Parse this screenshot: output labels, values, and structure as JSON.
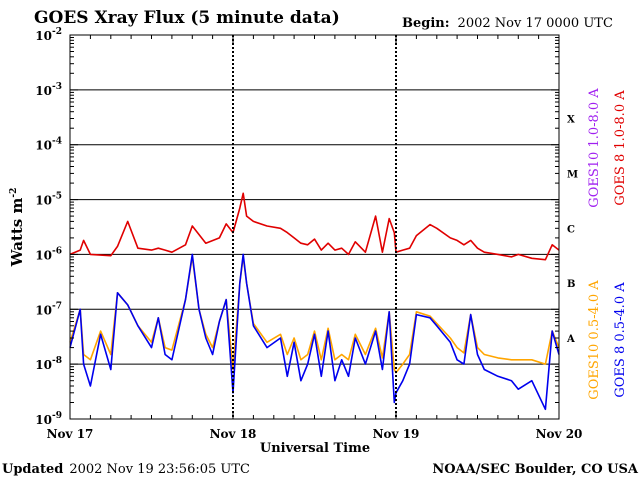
{
  "chart_data": {
    "type": "line",
    "title": "GOES Xray Flux (5 minute data)",
    "begin_label": "Begin:",
    "begin_value": "2002 Nov 17 0000 UTC",
    "xlabel": "Universal Time",
    "ylabel": "Watts m",
    "ylabel_exponent": "-2",
    "y_scale": "log",
    "ylim": [
      1e-09,
      0.01
    ],
    "y_ticks": [
      {
        "base": "10",
        "exp": "-2",
        "value": 0.01
      },
      {
        "base": "10",
        "exp": "-3",
        "value": 0.001
      },
      {
        "base": "10",
        "exp": "-4",
        "value": 0.0001
      },
      {
        "base": "10",
        "exp": "-5",
        "value": 1e-05
      },
      {
        "base": "10",
        "exp": "-6",
        "value": 1e-06
      },
      {
        "base": "10",
        "exp": "-7",
        "value": 1e-07
      },
      {
        "base": "10",
        "exp": "-8",
        "value": 1e-08
      },
      {
        "base": "10",
        "exp": "-9",
        "value": 1e-09
      }
    ],
    "xlim": [
      "2002-11-17T00:00",
      "2002-11-20T00:00"
    ],
    "x_ticks": [
      {
        "label": "Nov 17",
        "value": "2002-11-17T00:00"
      },
      {
        "label": "Nov 18",
        "value": "2002-11-18T00:00"
      },
      {
        "label": "Nov 19",
        "value": "2002-11-19T00:00"
      },
      {
        "label": "Nov 20",
        "value": "2002-11-20T00:00"
      }
    ],
    "gridlines_at": [
      0.001,
      0.0001,
      1e-05,
      1e-06,
      1e-07,
      1e-08
    ],
    "flare_classes": [
      {
        "label": "X",
        "value": 0.0003
      },
      {
        "label": "M",
        "value": 3e-05
      },
      {
        "label": "C",
        "value": 3e-06
      },
      {
        "label": "B",
        "value": 3e-07
      },
      {
        "label": "A",
        "value": 3e-08
      }
    ],
    "legend_placement": "right",
    "legend": [
      {
        "text": "GOES10 1.0-8.0 A",
        "color": "#a020f0"
      },
      {
        "text": "GOES 8 1.0-8.0 A",
        "color": "#e00000"
      },
      {
        "text": "GOES10 0.5-4.0 A",
        "color": "#ffa500"
      },
      {
        "text": "GOES 8 0.5-4.0 A",
        "color": "#0000ee"
      }
    ],
    "series": [
      {
        "name": "GOES 8 1.0-8.0 A",
        "color": "#e00000",
        "points": [
          [
            "2002-11-17T00:00",
            1e-06
          ],
          [
            "2002-11-17T01:30",
            1.2e-06
          ],
          [
            "2002-11-17T02:00",
            1.8e-06
          ],
          [
            "2002-11-17T03:00",
            1e-06
          ],
          [
            "2002-11-17T06:00",
            9.5e-07
          ],
          [
            "2002-11-17T07:00",
            1.4e-06
          ],
          [
            "2002-11-17T08:30",
            4e-06
          ],
          [
            "2002-11-17T10:00",
            1.3e-06
          ],
          [
            "2002-11-17T12:00",
            1.2e-06
          ],
          [
            "2002-11-17T13:00",
            1.3e-06
          ],
          [
            "2002-11-17T14:00",
            1.2e-06
          ],
          [
            "2002-11-17T15:00",
            1.1e-06
          ],
          [
            "2002-11-17T17:00",
            1.5e-06
          ],
          [
            "2002-11-17T18:00",
            3.3e-06
          ],
          [
            "2002-11-17T20:00",
            1.6e-06
          ],
          [
            "2002-11-17T22:00",
            2e-06
          ],
          [
            "2002-11-17T23:00",
            3.6e-06
          ],
          [
            "2002-11-18T00:00",
            2.5e-06
          ],
          [
            "2002-11-18T01:00",
            7e-06
          ],
          [
            "2002-11-18T01:30",
            1.3e-05
          ],
          [
            "2002-11-18T02:00",
            5e-06
          ],
          [
            "2002-11-18T03:00",
            4e-06
          ],
          [
            "2002-11-18T05:00",
            3.3e-06
          ],
          [
            "2002-11-18T07:00",
            3e-06
          ],
          [
            "2002-11-18T08:00",
            2.5e-06
          ],
          [
            "2002-11-18T09:00",
            2e-06
          ],
          [
            "2002-11-18T10:00",
            1.6e-06
          ],
          [
            "2002-11-18T11:00",
            1.5e-06
          ],
          [
            "2002-11-18T12:00",
            1.9e-06
          ],
          [
            "2002-11-18T13:00",
            1.2e-06
          ],
          [
            "2002-11-18T14:00",
            1.6e-06
          ],
          [
            "2002-11-18T15:00",
            1.2e-06
          ],
          [
            "2002-11-18T16:00",
            1.3e-06
          ],
          [
            "2002-11-18T17:00",
            1e-06
          ],
          [
            "2002-11-18T18:00",
            1.7e-06
          ],
          [
            "2002-11-18T19:30",
            1.1e-06
          ],
          [
            "2002-11-18T21:00",
            5e-06
          ],
          [
            "2002-11-18T22:00",
            1.1e-06
          ],
          [
            "2002-11-18T23:00",
            4.5e-06
          ],
          [
            "2002-11-18T23:45",
            2.5e-06
          ],
          [
            "2002-11-19T00:00",
            1.1e-06
          ],
          [
            "2002-11-19T01:00",
            1.2e-06
          ],
          [
            "2002-11-19T02:00",
            1.3e-06
          ],
          [
            "2002-11-19T03:00",
            2.2e-06
          ],
          [
            "2002-11-19T05:00",
            3.5e-06
          ],
          [
            "2002-11-19T06:00",
            3e-06
          ],
          [
            "2002-11-19T08:00",
            2e-06
          ],
          [
            "2002-11-19T09:00",
            1.8e-06
          ],
          [
            "2002-11-19T10:00",
            1.5e-06
          ],
          [
            "2002-11-19T11:00",
            1.8e-06
          ],
          [
            "2002-11-19T12:00",
            1.3e-06
          ],
          [
            "2002-11-19T13:00",
            1.1e-06
          ],
          [
            "2002-11-19T15:00",
            1e-06
          ],
          [
            "2002-11-19T17:00",
            9e-07
          ],
          [
            "2002-11-19T18:00",
            1e-06
          ],
          [
            "2002-11-19T20:00",
            8.5e-07
          ],
          [
            "2002-11-19T22:00",
            8e-07
          ],
          [
            "2002-11-19T23:00",
            1.5e-06
          ],
          [
            "2002-11-20T00:00",
            1.2e-06
          ]
        ]
      },
      {
        "name": "GOES 8 0.5-4.0 A",
        "color": "#0000ee",
        "points": [
          [
            "2002-11-17T00:00",
            2e-08
          ],
          [
            "2002-11-17T01:30",
            1e-07
          ],
          [
            "2002-11-17T02:00",
            1e-08
          ],
          [
            "2002-11-17T03:00",
            4e-09
          ],
          [
            "2002-11-17T04:30",
            3.5e-08
          ],
          [
            "2002-11-17T06:00",
            8e-09
          ],
          [
            "2002-11-17T07:00",
            2e-07
          ],
          [
            "2002-11-17T08:30",
            1.2e-07
          ],
          [
            "2002-11-17T10:00",
            5e-08
          ],
          [
            "2002-11-17T12:00",
            2e-08
          ],
          [
            "2002-11-17T13:00",
            7e-08
          ],
          [
            "2002-11-17T14:00",
            1.5e-08
          ],
          [
            "2002-11-17T15:00",
            1.2e-08
          ],
          [
            "2002-11-17T17:00",
            1.5e-07
          ],
          [
            "2002-11-17T18:00",
            1e-06
          ],
          [
            "2002-11-17T19:00",
            1e-07
          ],
          [
            "2002-11-17T20:00",
            3e-08
          ],
          [
            "2002-11-17T21:00",
            1.5e-08
          ],
          [
            "2002-11-17T22:00",
            6e-08
          ],
          [
            "2002-11-17T23:00",
            1.5e-07
          ],
          [
            "2002-11-18T00:00",
            3e-09
          ],
          [
            "2002-11-18T01:00",
            3e-07
          ],
          [
            "2002-11-18T01:30",
            1e-06
          ],
          [
            "2002-11-18T02:00",
            3e-07
          ],
          [
            "2002-11-18T03:00",
            5e-08
          ],
          [
            "2002-11-18T05:00",
            2e-08
          ],
          [
            "2002-11-18T07:00",
            3e-08
          ],
          [
            "2002-11-18T08:00",
            6e-09
          ],
          [
            "2002-11-18T09:00",
            2.5e-08
          ],
          [
            "2002-11-18T10:00",
            5e-09
          ],
          [
            "2002-11-18T11:00",
            1e-08
          ],
          [
            "2002-11-18T12:00",
            3.5e-08
          ],
          [
            "2002-11-18T13:00",
            6e-09
          ],
          [
            "2002-11-18T14:00",
            4e-08
          ],
          [
            "2002-11-18T15:00",
            5e-09
          ],
          [
            "2002-11-18T16:00",
            1.2e-08
          ],
          [
            "2002-11-18T17:00",
            6e-09
          ],
          [
            "2002-11-18T18:00",
            3e-08
          ],
          [
            "2002-11-18T19:30",
            1e-08
          ],
          [
            "2002-11-18T21:00",
            4e-08
          ],
          [
            "2002-11-18T22:00",
            8e-09
          ],
          [
            "2002-11-18T23:00",
            9e-08
          ],
          [
            "2002-11-18T23:45",
            2e-09
          ],
          [
            "2002-11-19T00:00",
            3e-09
          ],
          [
            "2002-11-19T01:00",
            5e-09
          ],
          [
            "2002-11-19T02:00",
            1e-08
          ],
          [
            "2002-11-19T03:00",
            8e-08
          ],
          [
            "2002-11-19T05:00",
            7e-08
          ],
          [
            "2002-11-19T06:00",
            5e-08
          ],
          [
            "2002-11-19T08:00",
            2.5e-08
          ],
          [
            "2002-11-19T09:00",
            1.2e-08
          ],
          [
            "2002-11-19T10:00",
            1e-08
          ],
          [
            "2002-11-19T11:00",
            8e-08
          ],
          [
            "2002-11-19T12:00",
            1.5e-08
          ],
          [
            "2002-11-19T13:00",
            8e-09
          ],
          [
            "2002-11-19T15:00",
            6e-09
          ],
          [
            "2002-11-19T17:00",
            5e-09
          ],
          [
            "2002-11-19T18:00",
            3.5e-09
          ],
          [
            "2002-11-19T20:00",
            5e-09
          ],
          [
            "2002-11-19T22:00",
            1.5e-09
          ],
          [
            "2002-11-19T23:00",
            4e-08
          ],
          [
            "2002-11-20T00:00",
            1.5e-08
          ]
        ]
      },
      {
        "name": "GOES10 0.5-4.0 A",
        "color": "#ffa500",
        "points": [
          [
            "2002-11-17T00:00",
            2.5e-08
          ],
          [
            "2002-11-17T01:30",
            1e-07
          ],
          [
            "2002-11-17T02:00",
            1.5e-08
          ],
          [
            "2002-11-17T03:00",
            1.2e-08
          ],
          [
            "2002-11-17T04:30",
            4e-08
          ],
          [
            "2002-11-17T06:00",
            1.5e-08
          ],
          [
            "2002-11-17T07:00",
            2e-07
          ],
          [
            "2002-11-17T08:30",
            1.2e-07
          ],
          [
            "2002-11-17T10:00",
            5e-08
          ],
          [
            "2002-11-17T12:00",
            2.5e-08
          ],
          [
            "2002-11-17T13:00",
            7e-08
          ],
          [
            "2002-11-17T14:00",
            2e-08
          ],
          [
            "2002-11-17T15:00",
            1.8e-08
          ],
          [
            "2002-11-17T17:00",
            1.5e-07
          ],
          [
            "2002-11-17T18:00",
            9e-07
          ],
          [
            "2002-11-17T19:00",
            1e-07
          ],
          [
            "2002-11-17T20:00",
            3.5e-08
          ],
          [
            "2002-11-17T21:00",
            2e-08
          ],
          [
            "2002-11-17T22:00",
            6e-08
          ],
          [
            "2002-11-17T23:00",
            1.5e-07
          ],
          [
            "2002-11-18T00:00",
            8e-09
          ],
          [
            "2002-11-18T01:00",
            3e-07
          ],
          [
            "2002-11-18T01:30",
            9e-07
          ],
          [
            "2002-11-18T02:00",
            3e-07
          ],
          [
            "2002-11-18T03:00",
            5.5e-08
          ],
          [
            "2002-11-18T05:00",
            2.5e-08
          ],
          [
            "2002-11-18T07:00",
            3.5e-08
          ],
          [
            "2002-11-18T08:00",
            1.5e-08
          ],
          [
            "2002-11-18T09:00",
            3e-08
          ],
          [
            "2002-11-18T10:00",
            1.2e-08
          ],
          [
            "2002-11-18T11:00",
            1.5e-08
          ],
          [
            "2002-11-18T12:00",
            4e-08
          ],
          [
            "2002-11-18T13:00",
            1.2e-08
          ],
          [
            "2002-11-18T14:00",
            4.5e-08
          ],
          [
            "2002-11-18T15:00",
            1.2e-08
          ],
          [
            "2002-11-18T16:00",
            1.5e-08
          ],
          [
            "2002-11-18T17:00",
            1.2e-08
          ],
          [
            "2002-11-18T18:00",
            3.5e-08
          ],
          [
            "2002-11-18T19:30",
            1.5e-08
          ],
          [
            "2002-11-18T21:00",
            4.5e-08
          ],
          [
            "2002-11-18T22:00",
            1.3e-08
          ],
          [
            "2002-11-18T23:00",
            9e-08
          ],
          [
            "2002-11-18T23:45",
            8e-09
          ],
          [
            "2002-11-19T00:00",
            7e-09
          ],
          [
            "2002-11-19T01:00",
            1e-08
          ],
          [
            "2002-11-19T02:00",
            1.5e-08
          ],
          [
            "2002-11-19T03:00",
            9e-08
          ],
          [
            "2002-11-19T05:00",
            7.5e-08
          ],
          [
            "2002-11-19T06:00",
            5.5e-08
          ],
          [
            "2002-11-19T08:00",
            3e-08
          ],
          [
            "2002-11-19T09:00",
            2e-08
          ],
          [
            "2002-11-19T10:00",
            1.6e-08
          ],
          [
            "2002-11-19T11:00",
            8e-08
          ],
          [
            "2002-11-19T12:00",
            2e-08
          ],
          [
            "2002-11-19T13:00",
            1.5e-08
          ],
          [
            "2002-11-19T15:00",
            1.3e-08
          ],
          [
            "2002-11-19T17:00",
            1.2e-08
          ],
          [
            "2002-11-19T18:00",
            1.2e-08
          ],
          [
            "2002-11-19T20:00",
            1.2e-08
          ],
          [
            "2002-11-19T22:00",
            1e-08
          ],
          [
            "2002-11-19T23:00",
            4e-08
          ],
          [
            "2002-11-20T00:00",
            2e-08
          ]
        ]
      }
    ]
  },
  "footer": {
    "updated_label": "Updated",
    "updated_value": "2002 Nov 19 23:56:05 UTC",
    "credit": "NOAA/SEC Boulder, CO USA"
  }
}
